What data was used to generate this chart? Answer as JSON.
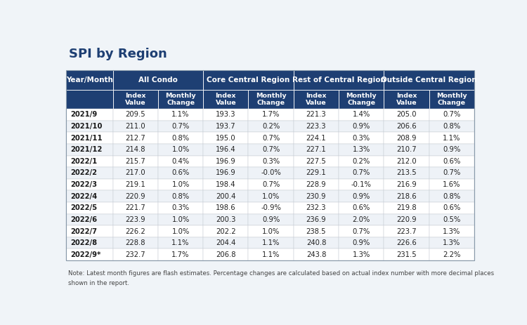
{
  "title": "SPI by Region",
  "note_line1": "Note: Latest month figures are flash estimates. Percentage changes are calculated based on actual index number with more decimal places",
  "note_line2": "shown in the report.",
  "rows": [
    [
      "2021/9",
      "209.5",
      "1.1%",
      "193.3",
      "1.7%",
      "221.3",
      "1.4%",
      "205.0",
      "0.7%"
    ],
    [
      "2021/10",
      "211.0",
      "0.7%",
      "193.7",
      "0.2%",
      "223.3",
      "0.9%",
      "206.6",
      "0.8%"
    ],
    [
      "2021/11",
      "212.7",
      "0.8%",
      "195.0",
      "0.7%",
      "224.1",
      "0.3%",
      "208.9",
      "1.1%"
    ],
    [
      "2021/12",
      "214.8",
      "1.0%",
      "196.4",
      "0.7%",
      "227.1",
      "1.3%",
      "210.7",
      "0.9%"
    ],
    [
      "2022/1",
      "215.7",
      "0.4%",
      "196.9",
      "0.3%",
      "227.5",
      "0.2%",
      "212.0",
      "0.6%"
    ],
    [
      "2022/2",
      "217.0",
      "0.6%",
      "196.9",
      "-0.0%",
      "229.1",
      "0.7%",
      "213.5",
      "0.7%"
    ],
    [
      "2022/3",
      "219.1",
      "1.0%",
      "198.4",
      "0.7%",
      "228.9",
      "-0.1%",
      "216.9",
      "1.6%"
    ],
    [
      "2022/4",
      "220.9",
      "0.8%",
      "200.4",
      "1.0%",
      "230.9",
      "0.9%",
      "218.6",
      "0.8%"
    ],
    [
      "2022/5",
      "221.7",
      "0.3%",
      "198.6",
      "-0.9%",
      "232.3",
      "0.6%",
      "219.8",
      "0.6%"
    ],
    [
      "2022/6",
      "223.9",
      "1.0%",
      "200.3",
      "0.9%",
      "236.9",
      "2.0%",
      "220.9",
      "0.5%"
    ],
    [
      "2022/7",
      "226.2",
      "1.0%",
      "202.2",
      "1.0%",
      "238.5",
      "0.7%",
      "223.7",
      "1.3%"
    ],
    [
      "2022/8",
      "228.8",
      "1.1%",
      "204.4",
      "1.1%",
      "240.8",
      "0.9%",
      "226.6",
      "1.3%"
    ],
    [
      "2022/9*",
      "232.7",
      "1.7%",
      "206.8",
      "1.1%",
      "243.8",
      "1.3%",
      "231.5",
      "2.2%"
    ]
  ],
  "header_bg": "#1e3f73",
  "header_text": "#ffffff",
  "row_bg_odd": "#ffffff",
  "row_bg_even": "#eef2f7",
  "border_color": "#c8cdd5",
  "title_color": "#1e3f73",
  "note_color": "#444444",
  "background_color": "#f0f4f8"
}
